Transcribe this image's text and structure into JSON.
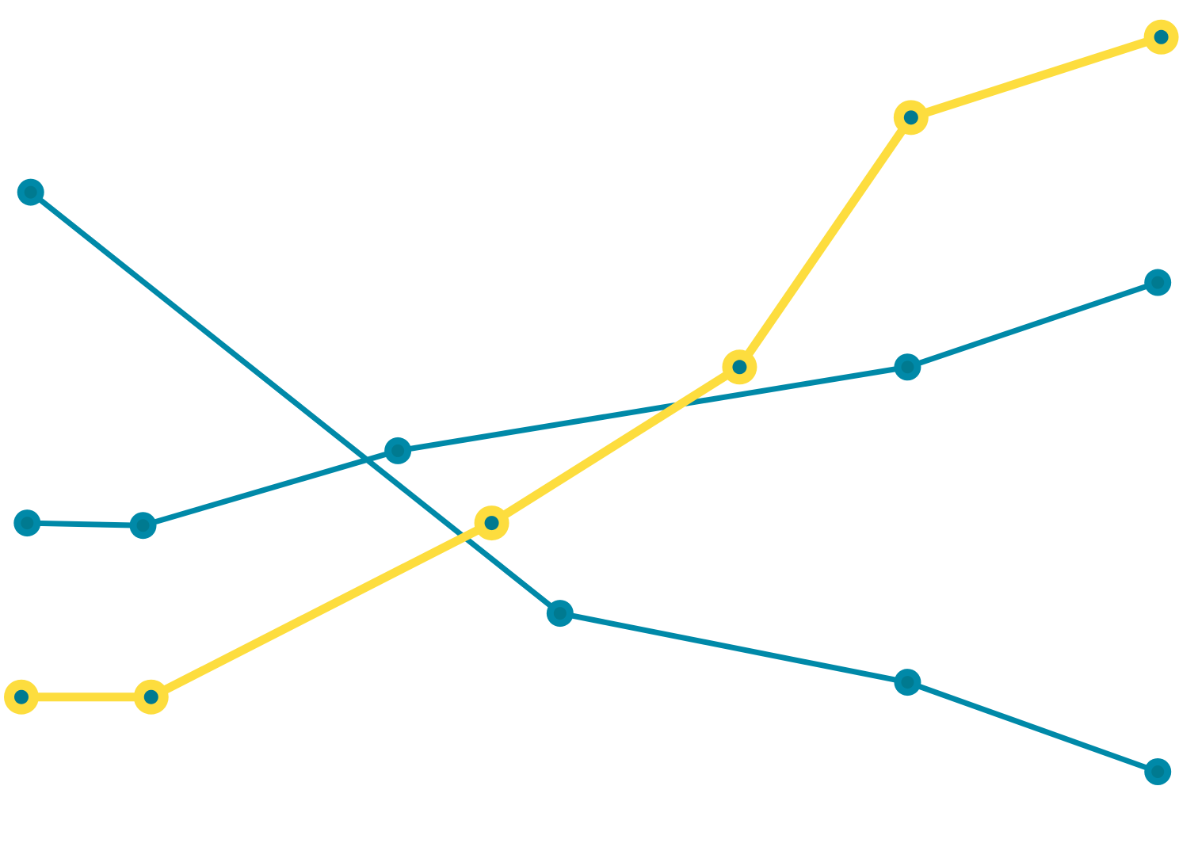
{
  "chart_data": {
    "type": "line",
    "title": "",
    "xlabel": "",
    "ylabel": "",
    "grid": false,
    "legend": "none",
    "xlim": [
      0,
      100
    ],
    "ylim": [
      0,
      100
    ],
    "colors": {
      "teal": "#0089a8",
      "yellow": "#fddd3e",
      "marker_inner": "#007a90",
      "background": "#ffffff"
    },
    "series": [
      {
        "style": "teal",
        "points": [
          {
            "x": 0.8,
            "y": 78.9
          },
          {
            "x": 46.5,
            "y": 27.6
          },
          {
            "x": 76.5,
            "y": 19.2
          },
          {
            "x": 98.1,
            "y": 8.3
          }
        ]
      },
      {
        "style": "teal",
        "points": [
          {
            "x": 0.5,
            "y": 38.6
          },
          {
            "x": 10.5,
            "y": 38.3
          },
          {
            "x": 32.5,
            "y": 47.4
          },
          {
            "x": 76.5,
            "y": 57.6
          },
          {
            "x": 98.1,
            "y": 67.9
          }
        ]
      },
      {
        "style": "yellow",
        "points": [
          {
            "x": 0.0,
            "y": 17.4
          },
          {
            "x": 11.2,
            "y": 17.4
          },
          {
            "x": 40.6,
            "y": 38.6
          },
          {
            "x": 62.0,
            "y": 57.6
          },
          {
            "x": 76.8,
            "y": 88.0
          },
          {
            "x": 98.4,
            "y": 97.8
          }
        ]
      }
    ]
  }
}
